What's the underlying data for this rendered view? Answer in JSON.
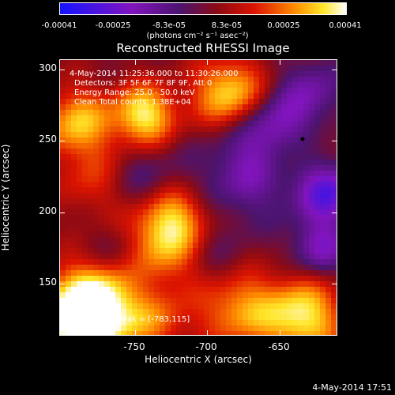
{
  "colorbar": {
    "ticks": [
      "-0.00041",
      "-0.00025",
      "-8.3e-05",
      "8.3e-05",
      "0.00025",
      "0.00041"
    ],
    "units": "(photons cm⁻² s⁻¹ asec⁻²)"
  },
  "title": "Reconstructed RHESSI Image",
  "info": {
    "time": "4-May-2014 11:25:36.000 to 11:30:26.000",
    "detectors": "Detectors: 3F 5F 6F 7F 8F 9F, Att 0",
    "energy": "Energy Range: 25.0 - 50.0 keV",
    "clean": "Clean    Total counts: 1.38E+04",
    "peak": "Position of Peak = [-783,115]"
  },
  "axes": {
    "xlabel": "Heliocentric X (arcsec)",
    "ylabel": "Heliocentric Y (arcsec)",
    "xticks": [
      "-750",
      "-700",
      "-650"
    ],
    "yticks": [
      "300",
      "250",
      "200",
      "150"
    ]
  },
  "footer": {
    "timestamp": "4-May-2014 17:51"
  },
  "chart_data": {
    "type": "heatmap",
    "title": "Reconstructed RHESSI Image",
    "xlabel": "Heliocentric X (arcsec)",
    "ylabel": "Heliocentric Y (arcsec)",
    "xlim": [
      -798,
      -608
    ],
    "ylim": [
      112,
      307
    ],
    "zlim": [
      -0.00041,
      0.00041
    ],
    "peak": [
      -783,
      115
    ]
  }
}
